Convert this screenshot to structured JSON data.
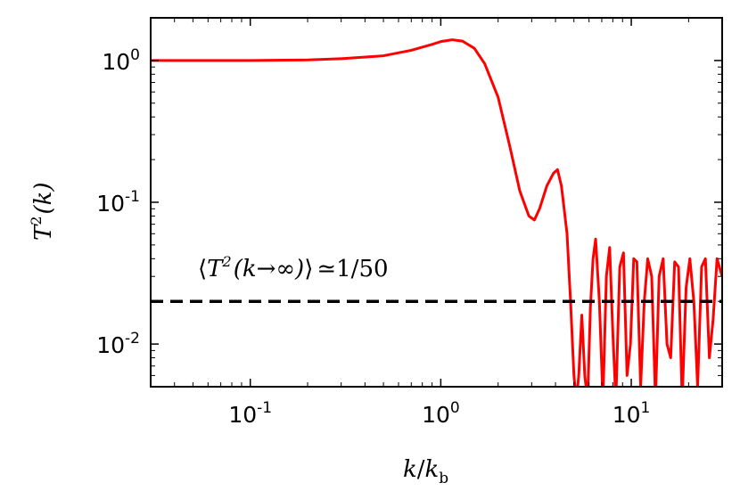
{
  "chart_data": {
    "type": "line",
    "xscale": "log",
    "yscale": "log",
    "xlim": [
      0.03,
      30
    ],
    "ylim": [
      0.005,
      2
    ],
    "grid": false,
    "xticks": [
      {
        "value": 0.1,
        "base": "10",
        "exp": "-1"
      },
      {
        "value": 1,
        "base": "10",
        "exp": "0"
      },
      {
        "value": 10,
        "base": "10",
        "exp": "1"
      }
    ],
    "yticks": [
      {
        "value": 0.01,
        "base": "10",
        "exp": "-2"
      },
      {
        "value": 0.1,
        "base": "10",
        "exp": "-1"
      },
      {
        "value": 1,
        "base": "10",
        "exp": "0"
      }
    ],
    "xlabel": {
      "k": "k",
      "slash": "/",
      "kb": "k",
      "sub": "b"
    },
    "ylabel": {
      "T": "T",
      "sup": "2",
      "arg": "(k)"
    },
    "annotation": {
      "open": "⟨",
      "T": "T",
      "sup": "2",
      "arg": "(k→∞)",
      "close": "⟩",
      "approx": "≃",
      "value": "1/50"
    },
    "series": [
      {
        "color": "#ff0000",
        "style": "solid",
        "x": [
          0.03,
          0.05,
          0.1,
          0.2,
          0.3,
          0.5,
          0.7,
          0.9,
          1.0,
          1.15,
          1.3,
          1.5,
          1.7,
          2.0,
          2.3,
          2.6,
          2.9,
          3.1,
          3.3,
          3.6,
          3.9,
          4.1,
          4.3,
          4.6,
          4.8,
          5.0,
          5.15,
          5.3,
          5.5,
          5.7,
          5.9,
          6.1,
          6.3,
          6.5,
          6.8,
          7.1,
          7.4,
          7.7,
          8.0,
          8.3,
          8.7,
          9.1,
          9.5,
          9.9,
          10.3,
          10.7,
          11.2,
          11.7,
          12.2,
          12.8,
          13.4,
          14.0,
          14.7,
          15.4,
          16.1,
          16.9,
          17.7,
          18.5,
          19.4,
          20.3,
          21.3,
          22.3,
          23.4,
          24.5,
          25.7,
          26.9,
          28.2,
          30.0
        ],
        "y": [
          1.0,
          1.0,
          1.0,
          1.01,
          1.03,
          1.08,
          1.18,
          1.3,
          1.36,
          1.4,
          1.37,
          1.22,
          0.95,
          0.55,
          0.25,
          0.12,
          0.08,
          0.075,
          0.09,
          0.13,
          0.16,
          0.17,
          0.13,
          0.06,
          0.02,
          0.006,
          0.004,
          0.006,
          0.016,
          0.006,
          0.004,
          0.018,
          0.04,
          0.055,
          0.02,
          0.004,
          0.03,
          0.048,
          0.012,
          0.004,
          0.035,
          0.044,
          0.006,
          0.01,
          0.04,
          0.038,
          0.005,
          0.02,
          0.04,
          0.03,
          0.004,
          0.03,
          0.04,
          0.01,
          0.008,
          0.038,
          0.035,
          0.004,
          0.025,
          0.04,
          0.02,
          0.005,
          0.035,
          0.04,
          0.008,
          0.015,
          0.04,
          0.03
        ]
      },
      {
        "color": "#000000",
        "style": "dashed",
        "x": [
          0.03,
          30
        ],
        "y": [
          0.02,
          0.02
        ]
      }
    ]
  }
}
